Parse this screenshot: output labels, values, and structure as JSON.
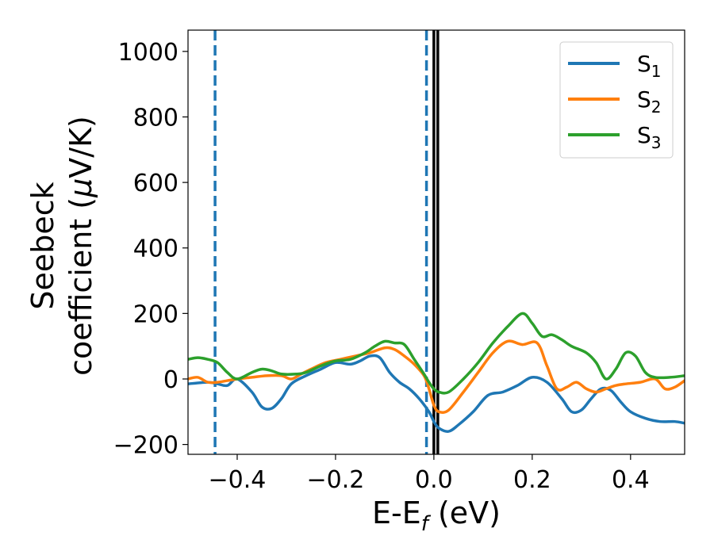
{
  "chart_data": {
    "type": "line",
    "xlabel_main": "E-E",
    "xlabel_sub": "f",
    "xlabel_unit": " (eV)",
    "ylabel_line1": "Seebeck",
    "ylabel_line2": "coefficient  (",
    "ylabel_mu": "μ",
    "ylabel_unit": "V/K)",
    "xlim": [
      -0.5,
      0.51
    ],
    "ylim": [
      -230,
      1065
    ],
    "xticks": [
      -0.4,
      -0.2,
      0.0,
      0.2,
      0.4
    ],
    "xtick_labels": [
      "−0.4",
      "−0.2",
      "0.0",
      "0.2",
      "0.4"
    ],
    "yticks": [
      -200,
      0,
      200,
      400,
      600,
      800,
      1000
    ],
    "ytick_labels": [
      "−200",
      "0",
      "200",
      "400",
      "600",
      "800",
      "1000"
    ],
    "legend_position": "top-right",
    "series": [
      {
        "name": "S",
        "sub": "1",
        "color": "#1f77b4",
        "x": [
          -0.5,
          -0.46,
          -0.44,
          -0.42,
          -0.4,
          -0.37,
          -0.35,
          -0.33,
          -0.31,
          -0.29,
          -0.26,
          -0.23,
          -0.2,
          -0.17,
          -0.15,
          -0.13,
          -0.11,
          -0.09,
          -0.07,
          -0.05,
          -0.03,
          -0.01,
          0.0,
          0.01,
          0.03,
          0.05,
          0.08,
          0.11,
          0.14,
          0.17,
          0.2,
          0.23,
          0.26,
          0.28,
          0.3,
          0.32,
          0.34,
          0.36,
          0.38,
          0.4,
          0.43,
          0.46,
          0.49,
          0.51
        ],
        "y": [
          -15,
          -10,
          -15,
          -20,
          0,
          -40,
          -85,
          -90,
          -60,
          -15,
          10,
          30,
          50,
          45,
          55,
          70,
          65,
          20,
          -10,
          -30,
          -60,
          -100,
          -130,
          -150,
          -160,
          -140,
          -100,
          -50,
          -40,
          -20,
          5,
          -10,
          -60,
          -100,
          -95,
          -60,
          -30,
          -35,
          -70,
          -100,
          -120,
          -130,
          -130,
          -135
        ]
      },
      {
        "name": "S",
        "sub": "2",
        "color": "#ff7f0e",
        "x": [
          -0.5,
          -0.48,
          -0.46,
          -0.44,
          -0.42,
          -0.4,
          -0.37,
          -0.34,
          -0.31,
          -0.29,
          -0.27,
          -0.25,
          -0.22,
          -0.19,
          -0.16,
          -0.13,
          -0.1,
          -0.08,
          -0.06,
          -0.04,
          -0.02,
          -0.01,
          0.0,
          0.01,
          0.03,
          0.06,
          0.09,
          0.12,
          0.15,
          0.18,
          0.21,
          0.23,
          0.25,
          0.27,
          0.29,
          0.31,
          0.33,
          0.35,
          0.37,
          0.39,
          0.42,
          0.45,
          0.47,
          0.49,
          0.51
        ],
        "y": [
          0,
          5,
          -10,
          -10,
          -5,
          0,
          5,
          10,
          10,
          0,
          15,
          30,
          50,
          60,
          70,
          80,
          95,
          90,
          70,
          45,
          10,
          -30,
          -80,
          -100,
          -95,
          -40,
          20,
          80,
          115,
          105,
          110,
          40,
          -30,
          -25,
          -10,
          -30,
          -40,
          -30,
          -20,
          -15,
          -10,
          0,
          -30,
          -25,
          -5
        ]
      },
      {
        "name": "S",
        "sub": "3",
        "color": "#2ca02c",
        "x": [
          -0.5,
          -0.48,
          -0.46,
          -0.44,
          -0.42,
          -0.4,
          -0.37,
          -0.35,
          -0.33,
          -0.31,
          -0.28,
          -0.26,
          -0.23,
          -0.2,
          -0.17,
          -0.14,
          -0.12,
          -0.1,
          -0.08,
          -0.06,
          -0.04,
          -0.02,
          -0.01,
          0.0,
          0.01,
          0.03,
          0.06,
          0.09,
          0.12,
          0.15,
          0.18,
          0.2,
          0.22,
          0.24,
          0.26,
          0.28,
          0.31,
          0.33,
          0.35,
          0.37,
          0.39,
          0.41,
          0.43,
          0.45,
          0.48,
          0.51
        ],
        "y": [
          60,
          65,
          60,
          50,
          20,
          0,
          20,
          30,
          25,
          15,
          15,
          20,
          40,
          55,
          60,
          80,
          100,
          115,
          110,
          105,
          60,
          15,
          -10,
          -30,
          -40,
          -40,
          0,
          50,
          110,
          160,
          200,
          170,
          130,
          135,
          120,
          100,
          80,
          50,
          0,
          30,
          80,
          70,
          20,
          5,
          5,
          10
        ]
      }
    ],
    "vlines": [
      {
        "x": -0.445,
        "style": "dashed",
        "color": "#1f77b4"
      },
      {
        "x": -0.015,
        "style": "dashed",
        "color": "#1f77b4"
      },
      {
        "x": 0.0,
        "style": "solid",
        "color": "#000000"
      },
      {
        "x": 0.008,
        "style": "solid",
        "color": "#000000"
      }
    ]
  }
}
